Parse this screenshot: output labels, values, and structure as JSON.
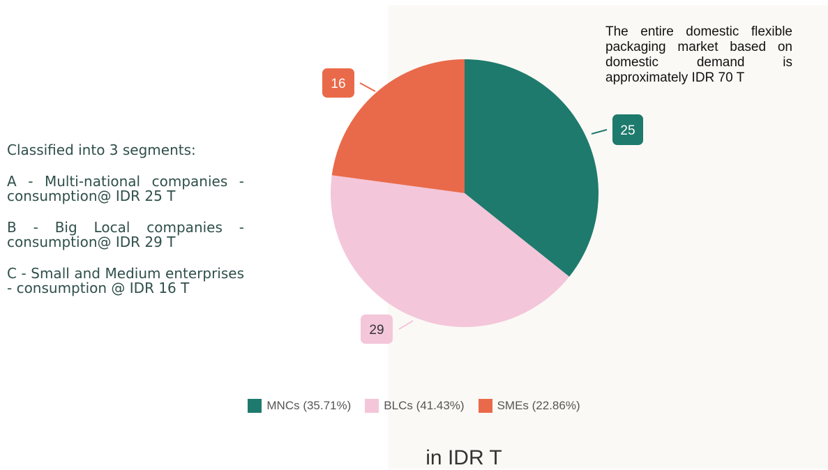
{
  "left_text": {
    "intro": "Classified into 3 segments:",
    "segments": [
      "A - Multi-national companies - consumption@ IDR 25 T",
      "B - Big Local companies - consumption@ IDR 29 T",
      "C - Small and Medium enterprises - consumption @ IDR 16 T"
    ]
  },
  "note": "The entire domestic flexible packaging market based on domestic demand is approximately IDR 70 T",
  "chart_data": {
    "type": "pie",
    "categories": [
      "MNCs",
      "BLCs",
      "SMEs"
    ],
    "values": [
      25,
      29,
      16
    ],
    "data_labels": [
      "25",
      "29",
      "16"
    ],
    "legend_labels": [
      "MNCs (35.71%)",
      "BLCs (41.43%)",
      "SMEs (22.86%)"
    ],
    "colors": [
      "#1e7a6c",
      "#f4c6da",
      "#e96a4a"
    ],
    "label_text_colors": [
      "#ffffff",
      "#333333",
      "#ffffff"
    ],
    "legend_placement": "bottom",
    "start_angle_deg": 0
  },
  "unit_label": "in IDR T"
}
